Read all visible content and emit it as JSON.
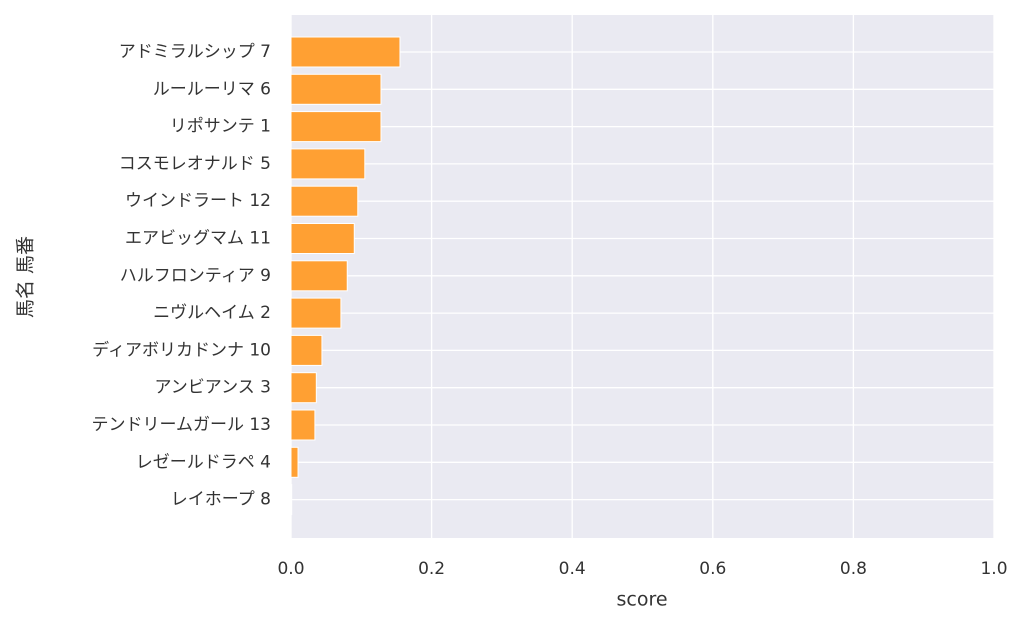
{
  "chart_data": {
    "type": "barh",
    "categories": [
      "アドミラルシップ 7",
      "ルールーリマ 6",
      "リポサンテ 1",
      "コスモレオナルド 5",
      "ウインドラート 12",
      "エアビッグマム 11",
      "ハルフロンティア 9",
      "ニヴルヘイム 2",
      "ディアボリカドンナ 10",
      "アンビアンス 3",
      "テンドリームガール 13",
      "レゼールドラペ 4",
      "レイホープ 8"
    ],
    "values": [
      0.155,
      0.128,
      0.128,
      0.105,
      0.095,
      0.09,
      0.08,
      0.071,
      0.044,
      0.036,
      0.034,
      0.01,
      0.001
    ],
    "color": "#ffa033",
    "xlabel": "score",
    "ylabel": "馬名 馬番",
    "xlim": [
      0,
      1
    ],
    "xticks": [
      {
        "value": 0,
        "label": "0.0"
      },
      0.2,
      0.4,
      0.6,
      0.8,
      {
        "value": 1,
        "label": "1.0"
      }
    ],
    "grid": true
  }
}
